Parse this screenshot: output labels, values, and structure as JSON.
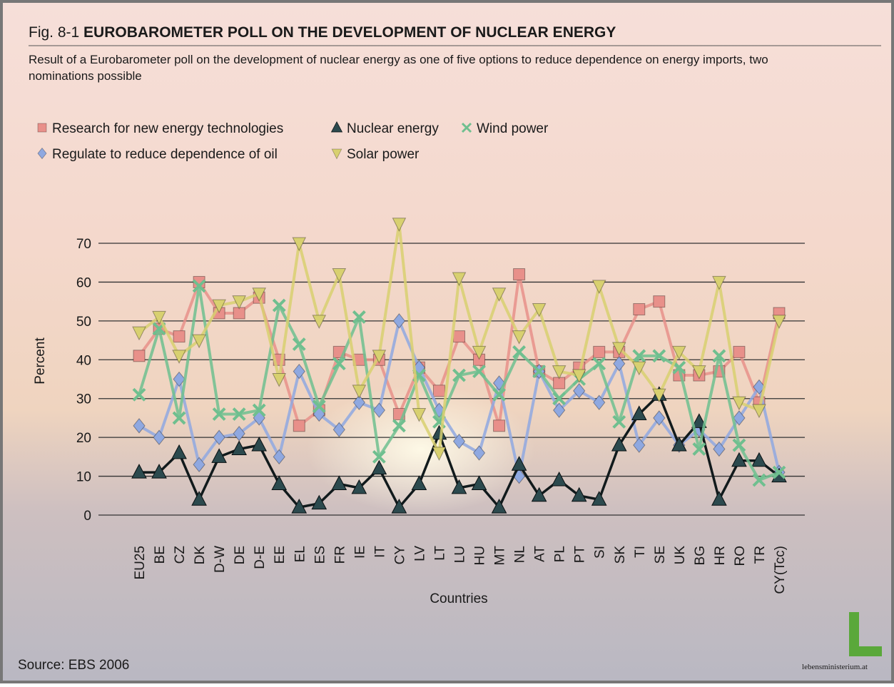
{
  "chart_data": {
    "type": "line",
    "figure_label": "Fig. 8-1",
    "title": "EUROBAROMETER POLL ON THE DEVELOPMENT OF NUCLEAR ENERGY",
    "subtitle": "Result of a Eurobarometer poll on the development of nuclear energy as one of five options to reduce dependence on energy imports, two nominations possible",
    "y_label": "Percent",
    "x_label": "Countries",
    "source": "Source: EBS 2006",
    "logo": "lebensministerium.at",
    "categories": [
      "EU25",
      "BE",
      "CZ",
      "DK",
      "D-W",
      "DE",
      "D-E",
      "EE",
      "EL",
      "ES",
      "FR",
      "IE",
      "IT",
      "CY",
      "LV",
      "LT",
      "LU",
      "HU",
      "MT",
      "NL",
      "AT",
      "PL",
      "PT",
      "SI",
      "SK",
      "TI",
      "SE",
      "UK",
      "BG",
      "HR",
      "RO",
      "TR",
      "CY(Tcc)"
    ],
    "ylim": [
      0,
      70
    ],
    "yticks": [
      0,
      10,
      20,
      30,
      40,
      50,
      60,
      70
    ],
    "grid": true,
    "series": [
      {
        "name": "Research for new energy technologies",
        "color": "#e8908a",
        "marker": "square",
        "values": [
          41,
          48,
          46,
          60,
          52,
          52,
          56,
          40,
          23,
          27,
          42,
          40,
          40,
          26,
          38,
          32,
          46,
          40,
          23,
          62,
          37,
          34,
          38,
          42,
          42,
          53,
          55,
          36,
          36,
          37,
          42,
          29,
          52
        ]
      },
      {
        "name": "Regulate to reduce dependence of oil",
        "color": "#8fa8e0",
        "marker": "diamond",
        "values": [
          23,
          20,
          35,
          13,
          20,
          21,
          25,
          15,
          37,
          26,
          22,
          29,
          27,
          50,
          38,
          27,
          19,
          16,
          34,
          10,
          37,
          27,
          32,
          29,
          39,
          18,
          25,
          18,
          22,
          17,
          25,
          33,
          11
        ]
      },
      {
        "name": "Nuclear energy",
        "color": "#111a1c",
        "marker": "triangle",
        "values": [
          11,
          11,
          16,
          4,
          15,
          17,
          18,
          8,
          2,
          3,
          8,
          7,
          12,
          2,
          8,
          21,
          7,
          8,
          2,
          13,
          5,
          9,
          5,
          4,
          18,
          26,
          31,
          18,
          24,
          4,
          14,
          14,
          10
        ]
      },
      {
        "name": "Wind power",
        "color": "#6fbf8f",
        "marker": "cross",
        "values": [
          31,
          48,
          25,
          59,
          26,
          26,
          27,
          54,
          44,
          28,
          39,
          51,
          15,
          23,
          36,
          24,
          36,
          37,
          31,
          42,
          37,
          30,
          35,
          39,
          24,
          41,
          41,
          38,
          17,
          41,
          18,
          9,
          11
        ]
      },
      {
        "name": "Solar power",
        "color": "#d8d070",
        "marker": "down",
        "values": [
          47,
          51,
          41,
          45,
          54,
          55,
          57,
          35,
          70,
          50,
          62,
          32,
          41,
          75,
          26,
          16,
          61,
          42,
          57,
          46,
          53,
          37,
          36,
          59,
          43,
          38,
          31,
          42,
          37,
          60,
          29,
          27,
          50
        ]
      }
    ]
  }
}
